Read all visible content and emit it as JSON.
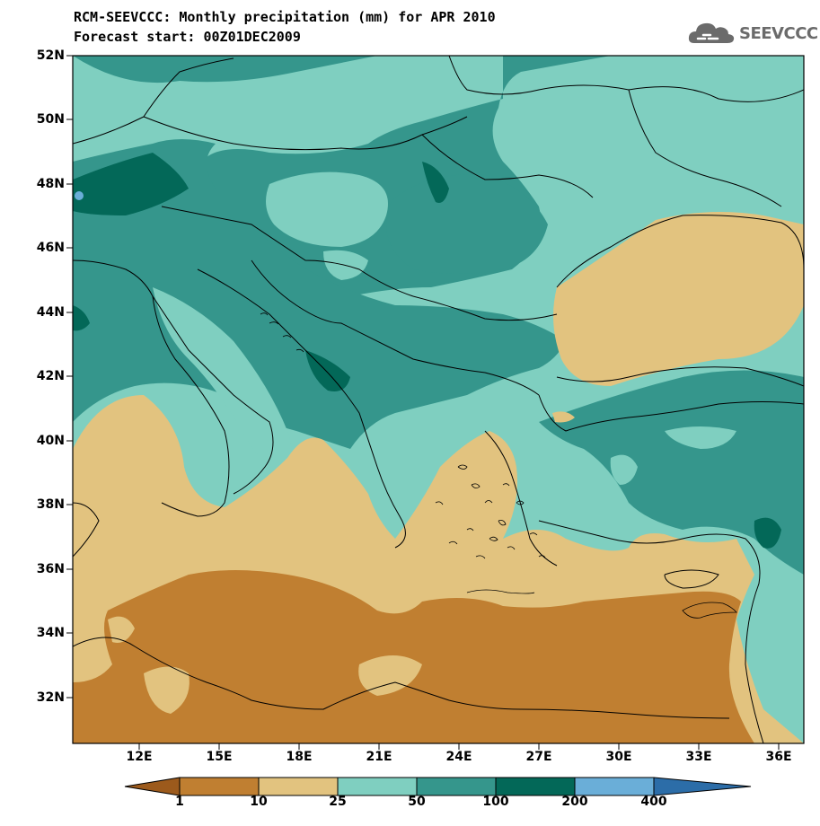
{
  "header": {
    "title_line1": "RCM-SEEVCCC: Monthly precipitation (mm) for APR 2010",
    "title_line2": "Forecast start: 00Z01DEC2009"
  },
  "logo": {
    "text": "SEEVCCC",
    "icon": "cloud-icon"
  },
  "map": {
    "lat_labels": [
      "52N",
      "50N",
      "48N",
      "46N",
      "44N",
      "42N",
      "40N",
      "38N",
      "36N",
      "34N",
      "32N"
    ],
    "lon_labels": [
      "12E",
      "15E",
      "18E",
      "21E",
      "24E",
      "27E",
      "30E",
      "33E",
      "36E"
    ]
  },
  "colorbar": {
    "labels": [
      "1",
      "10",
      "25",
      "50",
      "100",
      "200",
      "400"
    ],
    "colors": [
      "#9c5a1c",
      "#c07f31",
      "#e2c37f",
      "#7fcfc0",
      "#35968c",
      "#036858",
      "#6aaed8",
      "#2c6da8"
    ]
  }
}
